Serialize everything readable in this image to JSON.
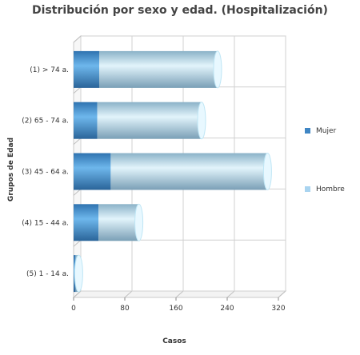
{
  "chart_data": {
    "type": "bar",
    "orientation": "horizontal",
    "stacked": true,
    "style": "3d-cylinder",
    "title": "Distribución por sexo y edad. (Hospitalización)",
    "xlabel": "Casos",
    "ylabel": "Grupos de Edad",
    "categories": [
      "(1) > 74 a.",
      "(2) 65 - 74 a.",
      "(3) 45 - 64 a.",
      "(4) 15 - 44 a.",
      "(5) 1 - 14 a."
    ],
    "series": [
      {
        "name": "Mujer",
        "color": "#3f86c4",
        "values": [
          40,
          37,
          58,
          39,
          3
        ]
      },
      {
        "name": "Hombre",
        "color": "#a9d4f0",
        "values": [
          185,
          163,
          245,
          63,
          5
        ]
      }
    ],
    "xlim": [
      0,
      320
    ],
    "xticks": [
      0,
      80,
      160,
      240,
      320
    ],
    "grid": true,
    "legend_position": "right"
  }
}
